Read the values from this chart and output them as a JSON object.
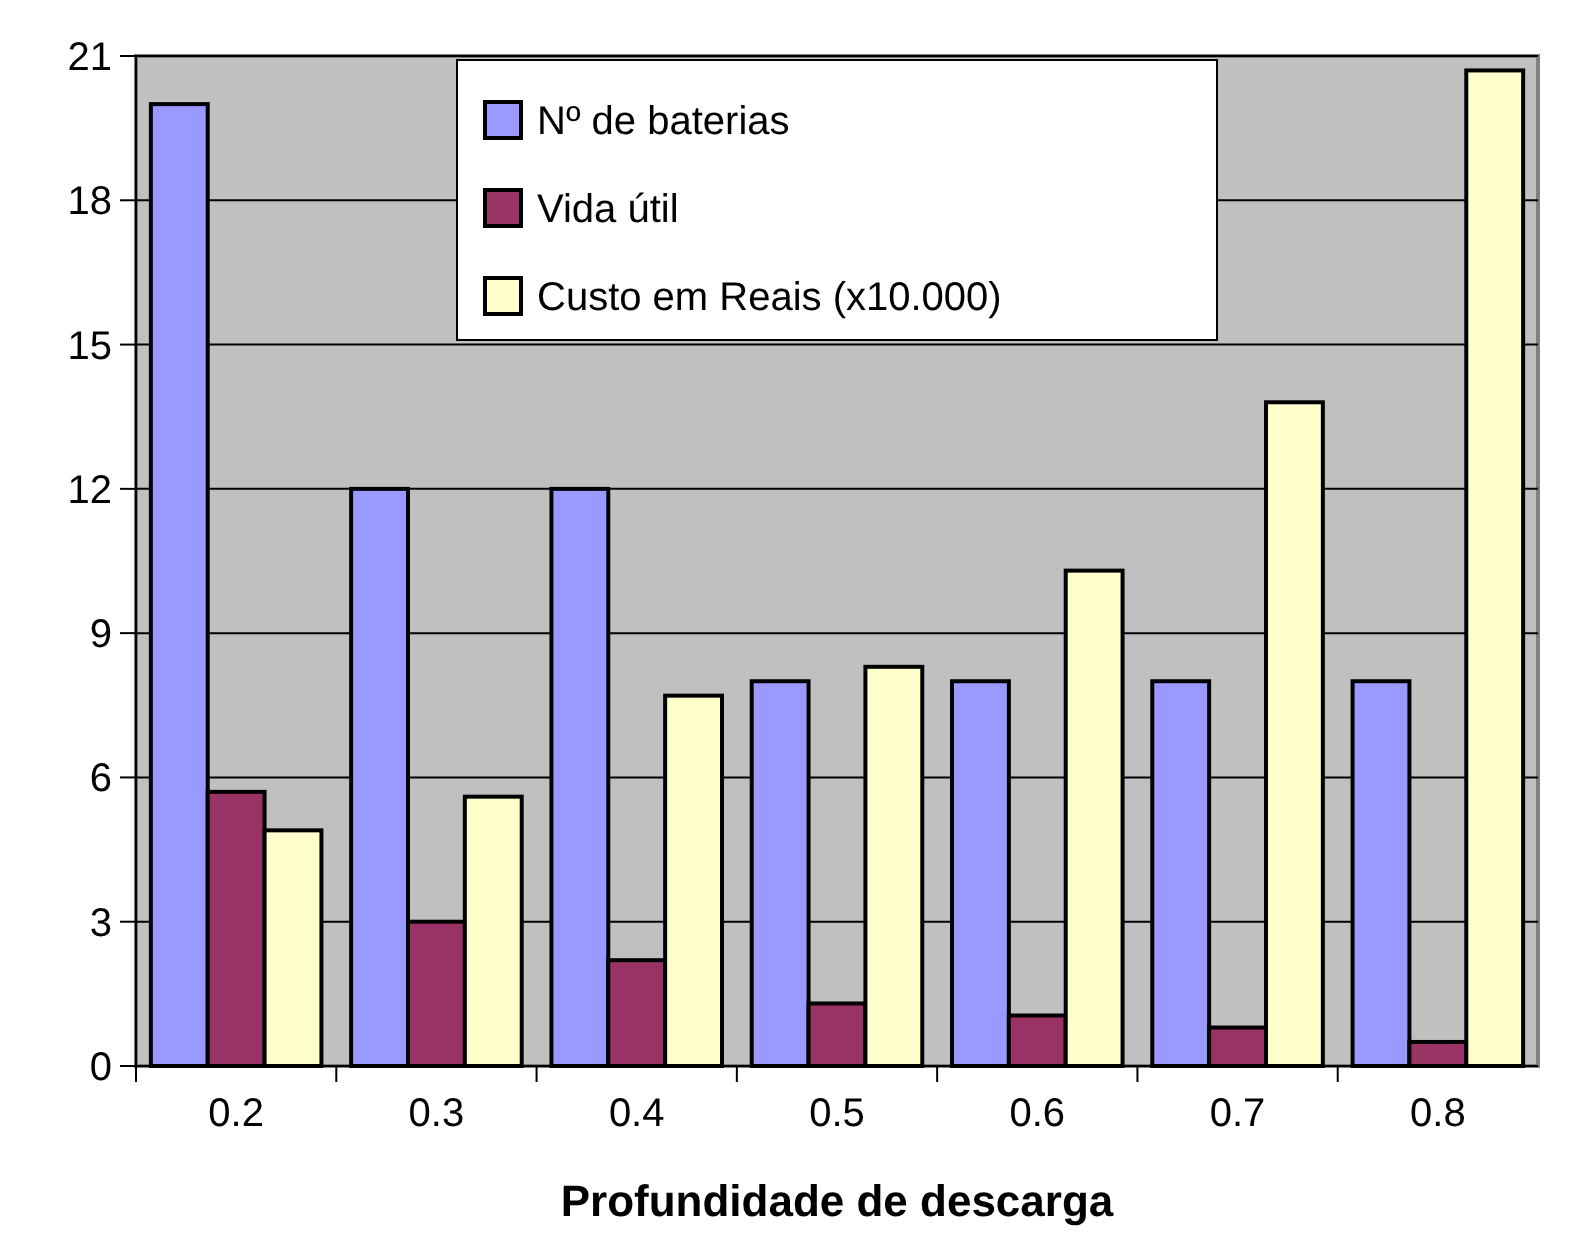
{
  "chart_data": {
    "type": "bar",
    "xlabel": "Profundidade de descarga",
    "categories": [
      "0.2",
      "0.3",
      "0.4",
      "0.5",
      "0.6",
      "0.7",
      "0.8"
    ],
    "series": [
      {
        "name": "Nº de baterias",
        "color": "#9999ff",
        "values": [
          20,
          12,
          12,
          8,
          8,
          8,
          8
        ]
      },
      {
        "name": "Vida útil",
        "color": "#993366",
        "values": [
          5.7,
          3.0,
          2.2,
          1.3,
          1.05,
          0.8,
          0.5
        ]
      },
      {
        "name": "Custo em Reais (x10.000)",
        "color": "#ffffcc",
        "values": [
          4.9,
          5.6,
          7.7,
          8.3,
          10.3,
          13.8,
          20.7
        ]
      }
    ],
    "ylim": [
      0,
      21
    ],
    "yticks": [
      0,
      3,
      6,
      9,
      12,
      15,
      18,
      21
    ],
    "grid": "y",
    "legend": "top"
  }
}
